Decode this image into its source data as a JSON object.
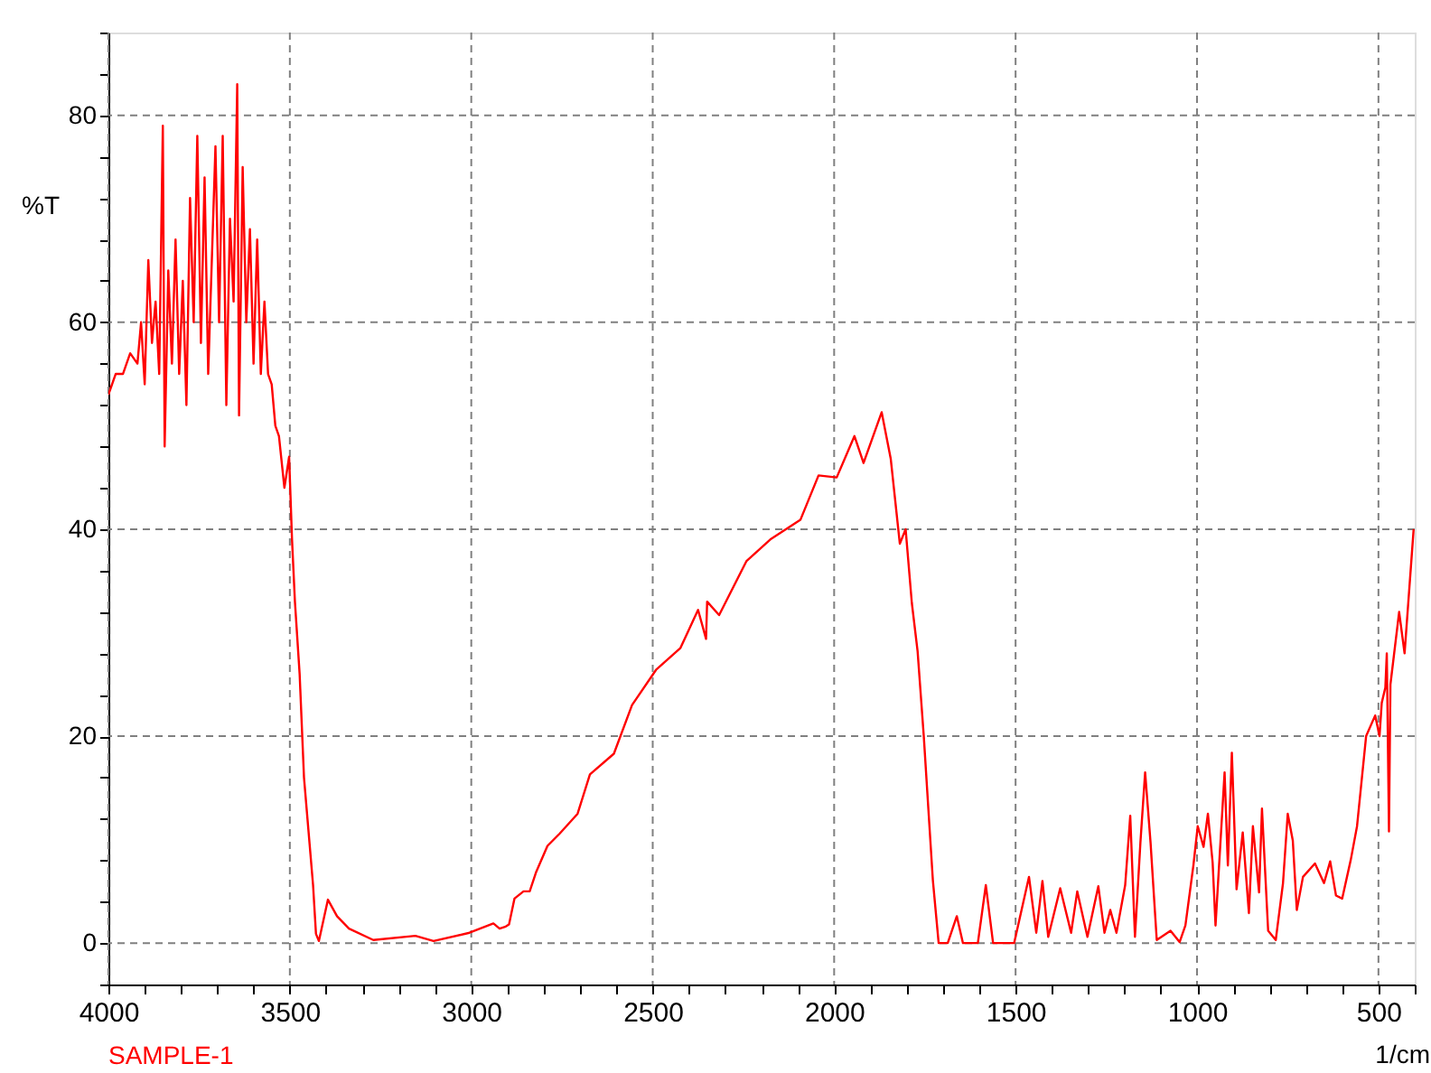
{
  "chart_data": {
    "type": "line",
    "ylabel": "%T",
    "xlabel": "1/cm",
    "annotations": [
      "SAMPLE-1"
    ],
    "xlim": [
      4000,
      400
    ],
    "ylim": [
      -4,
      88
    ],
    "xticks": [
      4000,
      {
        "value": 3900,
        "label": null
      },
      {
        "value": 3800,
        "label": null
      },
      {
        "value": 3700,
        "label": null
      },
      {
        "value": 3600,
        "label": null
      },
      3500,
      {
        "value": 3400,
        "label": null
      },
      {
        "value": 3300,
        "label": null
      },
      {
        "value": 3200,
        "label": null
      },
      {
        "value": 3100,
        "label": null
      },
      3000,
      {
        "value": 2900,
        "label": null
      },
      {
        "value": 2800,
        "label": null
      },
      {
        "value": 2700,
        "label": null
      },
      {
        "value": 2600,
        "label": null
      },
      2500,
      {
        "value": 2400,
        "label": null
      },
      {
        "value": 2300,
        "label": null
      },
      {
        "value": 2200,
        "label": null
      },
      {
        "value": 2100,
        "label": null
      },
      2000,
      {
        "value": 1900,
        "label": null
      },
      {
        "value": 1800,
        "label": null
      },
      {
        "value": 1700,
        "label": null
      },
      {
        "value": 1600,
        "label": null
      },
      1500,
      {
        "value": 1400,
        "label": null
      },
      {
        "value": 1300,
        "label": null
      },
      {
        "value": 1200,
        "label": null
      },
      {
        "value": 1100,
        "label": null
      },
      1000,
      {
        "value": 900,
        "label": null
      },
      {
        "value": 800,
        "label": null
      },
      {
        "value": 700,
        "label": null
      },
      {
        "value": 600,
        "label": null
      },
      500,
      {
        "value": 400,
        "label": null
      }
    ],
    "yticks": [
      {
        "value": -4,
        "label": null
      },
      0,
      {
        "value": 4,
        "label": null
      },
      {
        "value": 8,
        "label": null
      },
      {
        "value": 12,
        "label": null
      },
      {
        "value": 16,
        "label": null
      },
      20,
      {
        "value": 24,
        "label": null
      },
      {
        "value": 28,
        "label": null
      },
      {
        "value": 32,
        "label": null
      },
      {
        "value": 36,
        "label": null
      },
      40,
      {
        "value": 44,
        "label": null
      },
      {
        "value": 48,
        "label": null
      },
      {
        "value": 52,
        "label": null
      },
      {
        "value": 56,
        "label": null
      },
      60,
      {
        "value": 64,
        "label": null
      },
      {
        "value": 68,
        "label": null
      },
      {
        "value": 72,
        "label": null
      },
      {
        "value": 76,
        "label": null
      },
      80,
      {
        "value": 84,
        "label": null
      },
      {
        "value": 88,
        "label": null
      }
    ],
    "grid": true,
    "marker": "none",
    "line_style": "solid",
    "series": [
      {
        "color": "#ff0000",
        "x": [
          4000,
          3980,
          3960,
          3940,
          3920,
          3910,
          3900,
          3890,
          3880,
          3870,
          3860,
          3850,
          3845,
          3835,
          3825,
          3815,
          3805,
          3795,
          3785,
          3775,
          3765,
          3755,
          3745,
          3735,
          3725,
          3715,
          3705,
          3695,
          3685,
          3675,
          3665,
          3655,
          3645,
          3640,
          3630,
          3620,
          3610,
          3600,
          3590,
          3580,
          3570,
          3560,
          3550,
          3540,
          3530,
          3515,
          3502,
          3494,
          3486,
          3473,
          3461,
          3449,
          3436,
          3428,
          3420,
          3395,
          3370,
          3337,
          3270,
          3154,
          3104,
          3005,
          2939,
          2922,
          2905,
          2896,
          2881,
          2856,
          2839,
          2822,
          2790,
          2756,
          2707,
          2673,
          2607,
          2557,
          2491,
          2424,
          2375,
          2353,
          2350,
          2317,
          2242,
          2176,
          2093,
          2043,
          1993,
          1944,
          1919,
          1869,
          1844,
          1819,
          1803,
          1786,
          1770,
          1753,
          1728,
          1712,
          1687,
          1662,
          1645,
          1604,
          1582,
          1562,
          1504,
          1463,
          1443,
          1426,
          1410,
          1377,
          1347,
          1330,
          1302,
          1272,
          1255,
          1239,
          1222,
          1198,
          1184,
          1171,
          1156,
          1143,
          1128,
          1111,
          1073,
          1048,
          1032,
          1010,
          998,
          982,
          970,
          957,
          949,
          924,
          915,
          904,
          891,
          874,
          857,
          846,
          829,
          821,
          804,
          783,
          763,
          750,
          736,
          725,
          708,
          675,
          650,
          633,
          617,
          600,
          576,
          559,
          534,
          509,
          497,
          491,
          481,
          477,
          471,
          467,
          443,
          428,
          403
        ],
        "values": [
          53,
          55,
          55,
          57,
          56,
          60,
          54,
          66,
          58,
          62,
          55,
          79,
          48,
          65,
          56,
          68,
          55,
          64,
          52,
          72,
          60,
          78,
          58,
          74,
          55,
          66,
          77,
          60,
          78,
          52,
          70,
          62,
          83,
          51,
          75,
          60,
          69,
          56,
          68,
          55,
          62,
          55,
          54,
          50,
          49,
          44,
          47,
          39,
          33,
          26,
          16,
          11,
          5.6,
          0.9,
          0.2,
          4.2,
          2.6,
          1.4,
          0.3,
          0.7,
          0.2,
          1,
          1.9,
          1.4,
          1.6,
          1.8,
          4.3,
          5,
          5,
          6.8,
          9.4,
          10.6,
          12.5,
          16.3,
          18.3,
          23,
          26.4,
          28.5,
          32.2,
          29.4,
          33,
          31.7,
          36.9,
          39,
          40.9,
          45.2,
          45,
          49,
          46.4,
          51.3,
          46.8,
          38.6,
          40,
          32.9,
          28.2,
          20,
          6.1,
          0,
          0,
          2.6,
          0,
          0,
          5.6,
          0,
          0,
          6.4,
          1,
          6,
          0.6,
          5.3,
          1,
          5,
          0.6,
          5.5,
          1,
          3.2,
          1,
          5.6,
          12.3,
          0.6,
          9.7,
          16.5,
          9.7,
          0.3,
          1.2,
          0.1,
          1.7,
          7.5,
          11.3,
          9.3,
          12.5,
          7.8,
          1.7,
          16.5,
          7.5,
          18.4,
          5.2,
          10.7,
          2.9,
          11.3,
          4.9,
          13,
          1.2,
          0.3,
          5.8,
          12.5,
          9.9,
          3.2,
          6.4,
          7.7,
          5.8,
          7.9,
          4.6,
          4.3,
          8.1,
          11.3,
          20,
          22,
          20,
          23.2,
          24.7,
          28,
          10.8,
          25,
          32,
          28,
          40
        ]
      }
    ]
  }
}
